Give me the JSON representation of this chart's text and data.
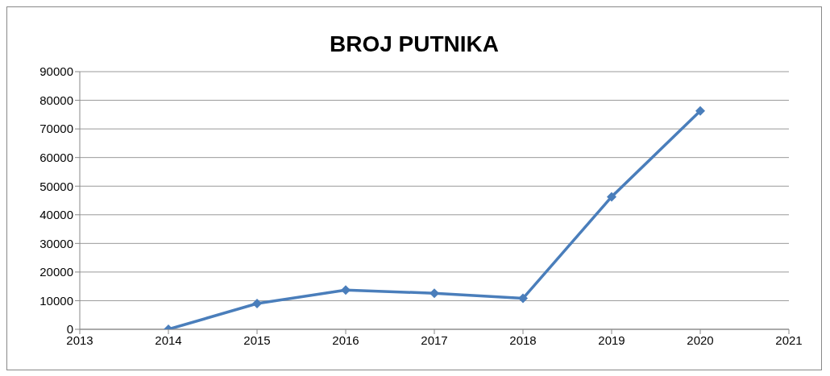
{
  "chart_data": {
    "type": "line",
    "title": "BROJ PUTNIKA",
    "x": [
      2014,
      2015,
      2016,
      2017,
      2018,
      2019,
      2020
    ],
    "series": [
      {
        "color": "#4a7ebb",
        "values": [
          0,
          9000,
          13700,
          12600,
          10800,
          46300,
          76300
        ]
      }
    ],
    "xlim": [
      2013,
      2021
    ],
    "xticks": [
      2013,
      2014,
      2015,
      2016,
      2017,
      2018,
      2019,
      2020,
      2021
    ],
    "ylim": [
      0,
      90000
    ],
    "yticks": [
      0,
      10000,
      20000,
      30000,
      40000,
      50000,
      60000,
      70000,
      80000,
      90000
    ],
    "grid": "y",
    "legend": false,
    "marker": "diamond",
    "line_style": "solid"
  }
}
